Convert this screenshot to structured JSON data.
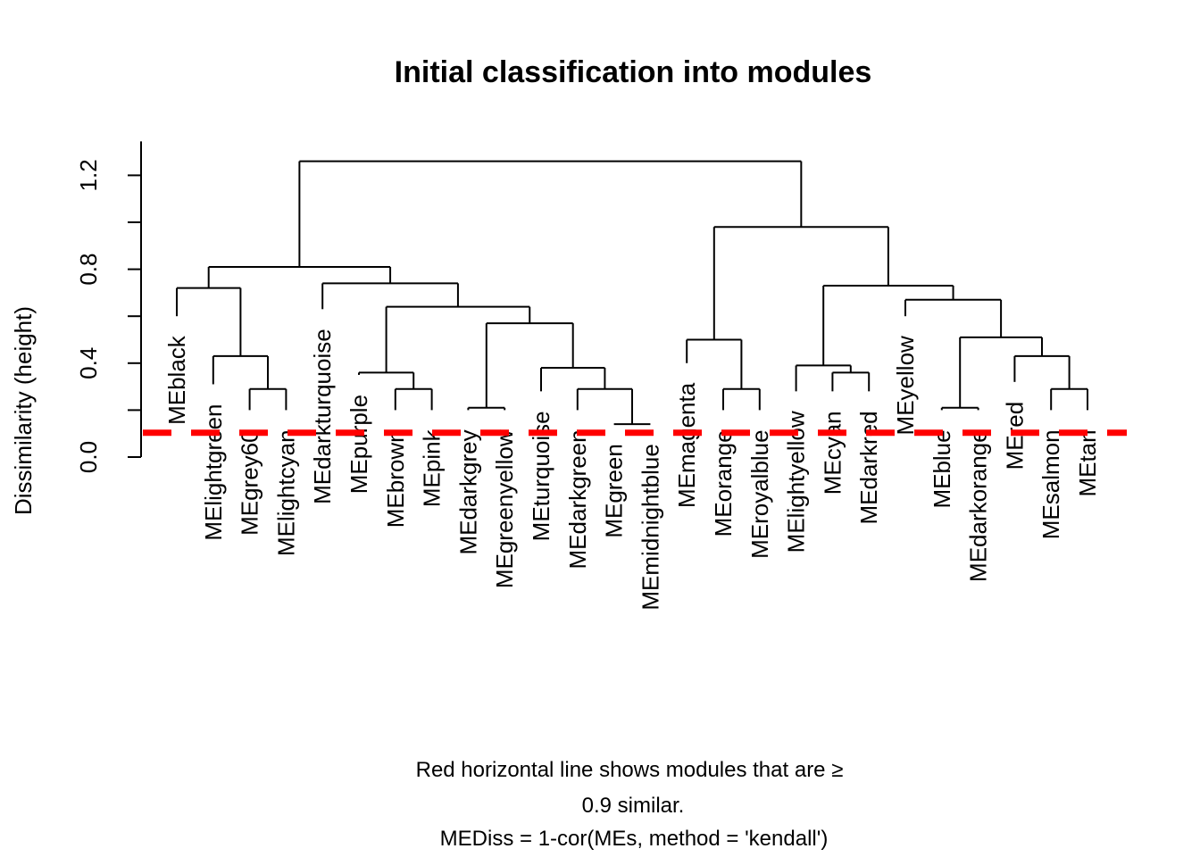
{
  "chart_data": {
    "type": "dendrogram",
    "title": "Initial classification into modules",
    "ylabel": "Dissimilarity (height)",
    "xlabel_lines": [
      "Red horizontal line shows modules that are ≥",
      "0.9 similar.",
      "MEDiss = 1-cor(MEs, method = 'kendall')"
    ],
    "ylim": [
      0,
      1.35
    ],
    "yticks": [
      0.0,
      0.2,
      0.4,
      0.6,
      0.8,
      1.0,
      1.2
    ],
    "ytick_labels": [
      "0.0",
      "0.4",
      "0.8",
      "1.2"
    ],
    "ytick_label_values": [
      0.0,
      0.4,
      0.8,
      1.2
    ],
    "cut_height": 0.1,
    "cut_line_color": "#ff0000",
    "leaves": [
      "MEblack",
      "MElightgreen",
      "MEgrey60",
      "MElightcyan",
      "MEdarkturquoise",
      "MEpurple",
      "MEbrown",
      "MEpink",
      "MEdarkgrey",
      "MEgreenyellow",
      "MEturquoise",
      "MEdarkgreen",
      "MEgreen",
      "MEmidnightblue",
      "MEmagenta",
      "MEorange",
      "MEroyalblue",
      "MElightyellow",
      "MEcyan",
      "MEdarkred",
      "MEyellow",
      "MEblue",
      "MEdarkorange",
      "MEred",
      "MEsalmon",
      "MEtan"
    ],
    "leaf_heights": [
      0.6,
      0.31,
      0.2,
      0.2,
      0.63,
      0.35,
      0.2,
      0.2,
      0.2,
      0.2,
      0.28,
      0.2,
      0.14,
      0.14,
      0.4,
      0.2,
      0.2,
      0.28,
      0.28,
      0.28,
      0.6,
      0.2,
      0.2,
      0.32,
      0.2,
      0.2
    ],
    "merges": [
      {
        "a": "L2",
        "b": "L3",
        "h": 0.29
      },
      {
        "a": "L1",
        "b": "M1",
        "h": 0.43
      },
      {
        "a": "L0",
        "b": "M2",
        "h": 0.72
      },
      {
        "a": "L6",
        "b": "L7",
        "h": 0.29
      },
      {
        "a": "L5",
        "b": "M4",
        "h": 0.36
      },
      {
        "a": "L8",
        "b": "L9",
        "h": 0.21
      },
      {
        "a": "L12",
        "b": "L13",
        "h": 0.14
      },
      {
        "a": "L11",
        "b": "M7",
        "h": 0.29
      },
      {
        "a": "L10",
        "b": "M8",
        "h": 0.38
      },
      {
        "a": "M6",
        "b": "M9",
        "h": 0.57
      },
      {
        "a": "M5",
        "b": "M10",
        "h": 0.64
      },
      {
        "a": "L4",
        "b": "M11",
        "h": 0.74
      },
      {
        "a": "M3",
        "b": "M12",
        "h": 0.81
      },
      {
        "a": "L15",
        "b": "L16",
        "h": 0.29
      },
      {
        "a": "L14",
        "b": "M14",
        "h": 0.5
      },
      {
        "a": "L18",
        "b": "L19",
        "h": 0.36
      },
      {
        "a": "L17",
        "b": "M16",
        "h": 0.39
      },
      {
        "a": "L21",
        "b": "L22",
        "h": 0.21
      },
      {
        "a": "L24",
        "b": "L25",
        "h": 0.29
      },
      {
        "a": "L23",
        "b": "M19",
        "h": 0.43
      },
      {
        "a": "M18",
        "b": "M20",
        "h": 0.51
      },
      {
        "a": "L20",
        "b": "M21",
        "h": 0.67
      },
      {
        "a": "M17",
        "b": "M22",
        "h": 0.73
      },
      {
        "a": "M15",
        "b": "M23",
        "h": 0.98
      },
      {
        "a": "M13",
        "b": "M24",
        "h": 1.26
      }
    ]
  }
}
